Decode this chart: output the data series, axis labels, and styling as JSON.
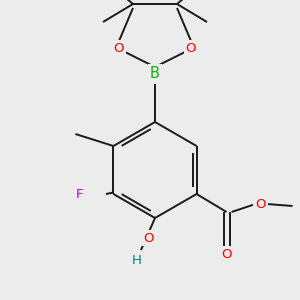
{
  "background_color": "#ececec",
  "bond_color": "#1a1a1a",
  "bond_lw": 1.4,
  "atom_colors": {
    "O": "#ff0000",
    "B": "#00bb00",
    "F": "#cc00cc",
    "H_O": "#008080",
    "C": "#1a1a1a"
  },
  "font_size_atom": 9.5,
  "font_size_small": 8.5
}
